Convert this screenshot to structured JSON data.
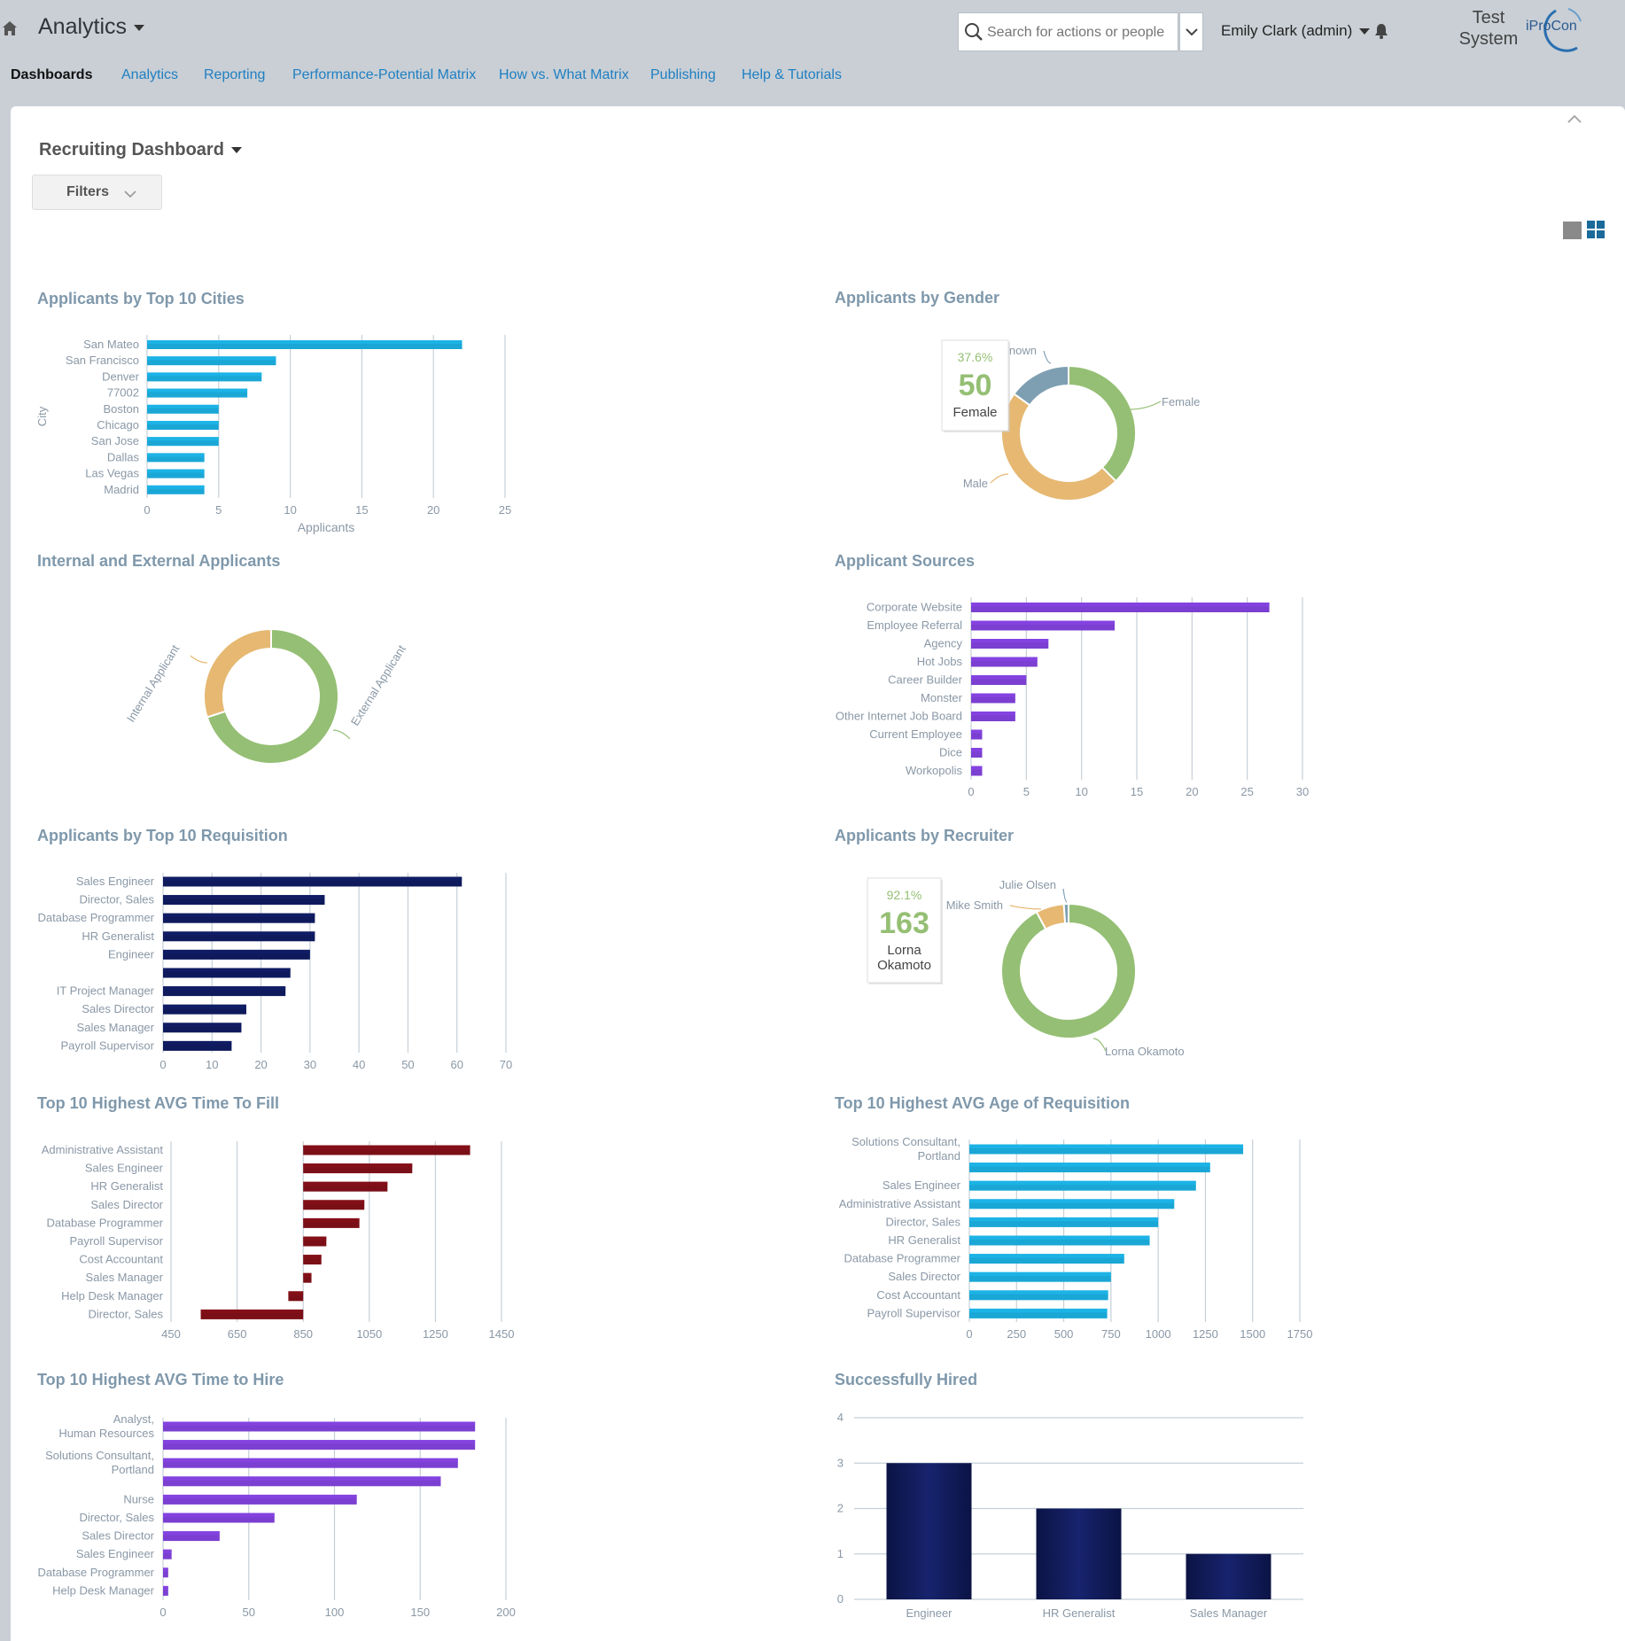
{
  "header": {
    "app_title": "Analytics",
    "search": {
      "placeholder": "Search for actions or people"
    },
    "user": "Emily Clark (admin)",
    "system_label_line1": "Test",
    "system_label_line2": "System",
    "logo_text": "iProCon"
  },
  "nav": {
    "tabs": [
      {
        "label": "Dashboards"
      },
      {
        "label": "Analytics"
      },
      {
        "label": "Reporting"
      },
      {
        "label": "Performance-Potential Matrix"
      },
      {
        "label": "How vs. What Matrix"
      },
      {
        "label": "Publishing"
      },
      {
        "label": "Help & Tutorials"
      }
    ]
  },
  "dashboard": {
    "title": "Recruiting Dashboard",
    "filters_label": "Filters"
  },
  "widgets": [
    {
      "title": "Applicants by Top 10 Cities"
    },
    {
      "title": "Applicants by Gender"
    },
    {
      "title": "Internal and External Applicants"
    },
    {
      "title": "Applicant Sources"
    },
    {
      "title": "Applicants by Top 10 Requisition"
    },
    {
      "title": "Applicants by Recruiter"
    },
    {
      "title": "Top 10 Highest AVG Time To Fill"
    },
    {
      "title": "Top 10 Highest AVG Age of Requisition"
    },
    {
      "title": "Top 10 Highest AVG Time to Hire"
    },
    {
      "title": "Successfully Hired"
    }
  ],
  "chart_data": [
    {
      "type": "bar",
      "orientation": "horizontal",
      "color": "#1aa7d6",
      "title": "Applicants by Top 10 Cities",
      "xlabel": "Applicants",
      "ylabel": "City",
      "categories": [
        "San Mateo",
        "San Francisco",
        "Denver",
        "77002",
        "Boston",
        "Chicago",
        "San Jose",
        "Dallas",
        "Las Vegas",
        "Madrid"
      ],
      "values": [
        22,
        9,
        8,
        7,
        5,
        5,
        5,
        4,
        4,
        4
      ],
      "xticks": [
        0,
        5,
        10,
        15,
        20,
        25
      ],
      "xlim": [
        0,
        25
      ]
    },
    {
      "type": "pie",
      "donut": true,
      "title": "Applicants by Gender",
      "slices": [
        {
          "name": "Female",
          "value": 50,
          "color": "#95bf74"
        },
        {
          "name": "Male",
          "value": 63,
          "color": "#e6b872"
        },
        {
          "name": "Unknown",
          "value": 20,
          "color": "#7e9fb2"
        }
      ],
      "tooltip": {
        "percent": "37.6%",
        "value": "50",
        "label": "Female"
      }
    },
    {
      "type": "pie",
      "donut": true,
      "title": "Internal and External Applicants",
      "slices": [
        {
          "name": "External Applicant",
          "value": 70,
          "color": "#95bf74"
        },
        {
          "name": "Internal Applicant",
          "value": 30,
          "color": "#e6b872"
        }
      ]
    },
    {
      "type": "bar",
      "orientation": "horizontal",
      "color": "#7b3fd1",
      "title": "Applicant Sources",
      "categories": [
        "Corporate Website",
        "Employee Referral",
        "Agency",
        "Hot Jobs",
        "Career Builder",
        "Monster",
        "Other Internet Job Board",
        "Current Employee",
        "Dice",
        "Workopolis"
      ],
      "values": [
        27,
        13,
        7,
        6,
        5,
        4,
        4,
        1,
        1,
        1
      ],
      "xticks": [
        0,
        5,
        10,
        15,
        20,
        25,
        30
      ],
      "xlim": [
        0,
        30
      ]
    },
    {
      "type": "bar",
      "orientation": "horizontal",
      "color": "#0f1a5c",
      "title": "Applicants by Top 10 Requisition",
      "categories": [
        "Sales Engineer",
        "Director, Sales",
        "Database Programmer",
        "HR Generalist",
        "Engineer",
        "",
        "IT Project Manager",
        "Sales Director",
        "Sales Manager",
        "Payroll Supervisor"
      ],
      "values": [
        61,
        33,
        31,
        31,
        30,
        26,
        25,
        17,
        16,
        14
      ],
      "xticks": [
        0,
        10,
        20,
        30,
        40,
        50,
        60,
        70
      ],
      "xlim": [
        0,
        70
      ]
    },
    {
      "type": "pie",
      "donut": true,
      "title": "Applicants by Recruiter",
      "slices": [
        {
          "name": "Lorna Okamoto",
          "value": 163,
          "color": "#95bf74"
        },
        {
          "name": "Mike Smith",
          "value": 12,
          "color": "#e6b872"
        },
        {
          "name": "Julie Olsen",
          "value": 2,
          "color": "#7e9fb2"
        }
      ],
      "tooltip": {
        "percent": "92.1%",
        "value": "163",
        "label_line1": "Lorna",
        "label_line2": "Okamoto"
      }
    },
    {
      "type": "bar",
      "orientation": "horizontal",
      "color": "#7a0f17",
      "baseline": 850,
      "title": "Top 10 Highest AVG Time To Fill",
      "categories": [
        "Administrative Assistant",
        "Sales Engineer",
        "HR Generalist",
        "Sales Director",
        "Database Programmer",
        "Payroll Supervisor",
        "Cost Accountant",
        "Sales Manager",
        "Help Desk Manager",
        "Director, Sales"
      ],
      "values": [
        1355,
        1180,
        1105,
        1035,
        1020,
        920,
        905,
        875,
        805,
        540
      ],
      "xticks": [
        450,
        650,
        850,
        1050,
        1250,
        1450
      ],
      "xlim": [
        450,
        1450
      ]
    },
    {
      "type": "bar",
      "orientation": "horizontal",
      "color": "#1aa7d6",
      "title": "Top 10 Highest AVG Age of Requisition",
      "categories": [
        "Solutions Consultant, Portland",
        "",
        "Sales Engineer",
        "Administrative Assistant",
        "Director, Sales",
        "HR Generalist",
        "Database Programmer",
        "Sales Director",
        "Cost Accountant",
        "Payroll Supervisor"
      ],
      "values": [
        1450,
        1275,
        1200,
        1085,
        1000,
        955,
        820,
        750,
        735,
        730
      ],
      "xticks": [
        0,
        250,
        500,
        750,
        1000,
        1250,
        1500,
        1750
      ],
      "xlim": [
        0,
        1750
      ]
    },
    {
      "type": "bar",
      "orientation": "horizontal",
      "color": "#7b3fd1",
      "title": "Top 10 Highest AVG Time to Hire",
      "categories": [
        "Analyst, Human Resources",
        "",
        "Solutions Consultant, Portland",
        "",
        "Nurse",
        "Director, Sales",
        "Sales Director",
        "Sales Engineer",
        "Database Programmer",
        "Help Desk Manager"
      ],
      "values": [
        182,
        182,
        172,
        162,
        113,
        65,
        33,
        5,
        3,
        3
      ],
      "xticks": [
        0,
        50,
        100,
        150,
        200
      ],
      "xlim": [
        0,
        200
      ]
    },
    {
      "type": "bar",
      "orientation": "vertical",
      "color": "#0f1a5c",
      "title": "Successfully Hired",
      "categories": [
        "Engineer",
        "HR Generalist",
        "Sales Manager"
      ],
      "values": [
        3,
        2,
        1
      ],
      "yticks": [
        0,
        1,
        2,
        3,
        4
      ],
      "ylim": [
        0,
        4
      ]
    }
  ]
}
